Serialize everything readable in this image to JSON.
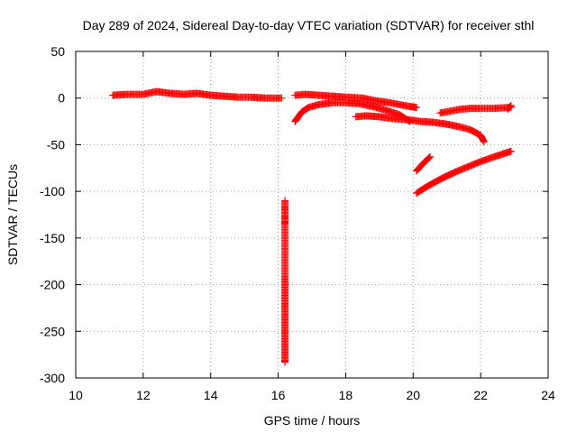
{
  "chart_data": {
    "type": "scatter",
    "title": "Day 289 of 2024, Sidereal Day-to-day VTEC variation (SDTVAR) for receiver sthl",
    "xlabel": "GPS time / hours",
    "ylabel": "SDTVAR / TECUs",
    "xlim": [
      10,
      24
    ],
    "ylim": [
      -300,
      50
    ],
    "xticks": [
      "10",
      "12",
      "14",
      "16",
      "18",
      "20",
      "22",
      "24"
    ],
    "yticks": [
      "50",
      "0",
      "-50",
      "-100",
      "-150",
      "-200",
      "-250",
      "-300"
    ],
    "xtick_values": [
      10,
      12,
      14,
      16,
      18,
      20,
      22,
      24
    ],
    "ytick_values": [
      50,
      0,
      -50,
      -100,
      -150,
      -200,
      -250,
      -300
    ],
    "grid": true,
    "marker": "plus",
    "color": "#ff0000",
    "tracks": [
      {
        "points": [
          [
            11.1,
            3
          ],
          [
            11.5,
            4
          ],
          [
            12.0,
            4
          ],
          [
            12.4,
            7
          ],
          [
            12.8,
            5
          ],
          [
            13.2,
            4
          ],
          [
            13.6,
            5
          ],
          [
            14.0,
            3
          ],
          [
            14.4,
            2
          ],
          [
            14.8,
            1
          ],
          [
            15.2,
            1
          ],
          [
            15.6,
            0
          ],
          [
            16.1,
            0
          ]
        ]
      },
      {
        "points": [
          [
            16.5,
            3
          ],
          [
            16.8,
            4
          ],
          [
            17.2,
            3
          ],
          [
            17.6,
            2
          ],
          [
            18.0,
            1
          ],
          [
            18.5,
            0
          ],
          [
            18.9,
            -3
          ],
          [
            19.3,
            -5
          ],
          [
            19.6,
            -7
          ],
          [
            19.9,
            -9
          ],
          [
            20.1,
            -10
          ]
        ]
      },
      {
        "points": [
          [
            16.5,
            -25
          ],
          [
            16.7,
            -15
          ],
          [
            16.9,
            -10
          ],
          [
            17.2,
            -7
          ],
          [
            17.6,
            -5
          ],
          [
            18.0,
            -5
          ],
          [
            18.4,
            -6
          ],
          [
            18.8,
            -9
          ],
          [
            19.2,
            -13
          ],
          [
            19.6,
            -18
          ],
          [
            19.9,
            -25
          ]
        ]
      },
      {
        "points": [
          [
            18.3,
            -20
          ],
          [
            18.6,
            -19
          ],
          [
            19.0,
            -20
          ],
          [
            19.4,
            -22
          ],
          [
            19.8,
            -23
          ],
          [
            20.2,
            -25
          ],
          [
            20.6,
            -26
          ],
          [
            21.0,
            -28
          ],
          [
            21.4,
            -31
          ],
          [
            21.7,
            -34
          ],
          [
            22.0,
            -40
          ],
          [
            22.1,
            -47
          ]
        ]
      },
      {
        "points": [
          [
            20.8,
            -16
          ],
          [
            21.1,
            -14
          ],
          [
            21.4,
            -12
          ],
          [
            21.7,
            -11
          ],
          [
            22.0,
            -11
          ],
          [
            22.4,
            -11
          ],
          [
            22.9,
            -10
          ]
        ]
      },
      {
        "points": [
          [
            22.8,
            -12
          ],
          [
            22.9,
            -8
          ]
        ]
      },
      {
        "points": [
          [
            20.1,
            -78
          ],
          [
            20.3,
            -70
          ],
          [
            20.5,
            -63
          ]
        ]
      },
      {
        "points": [
          [
            20.1,
            -102
          ],
          [
            20.4,
            -95
          ],
          [
            20.8,
            -87
          ],
          [
            21.2,
            -80
          ],
          [
            21.6,
            -74
          ],
          [
            22.0,
            -68
          ],
          [
            22.4,
            -63
          ],
          [
            22.9,
            -57
          ]
        ]
      },
      {
        "points": [
          [
            16.2,
            -110
          ],
          [
            16.2,
            -132
          ],
          [
            16.2,
            -135
          ],
          [
            16.2,
            -281
          ],
          [
            16.2,
            -283
          ]
        ]
      }
    ]
  }
}
